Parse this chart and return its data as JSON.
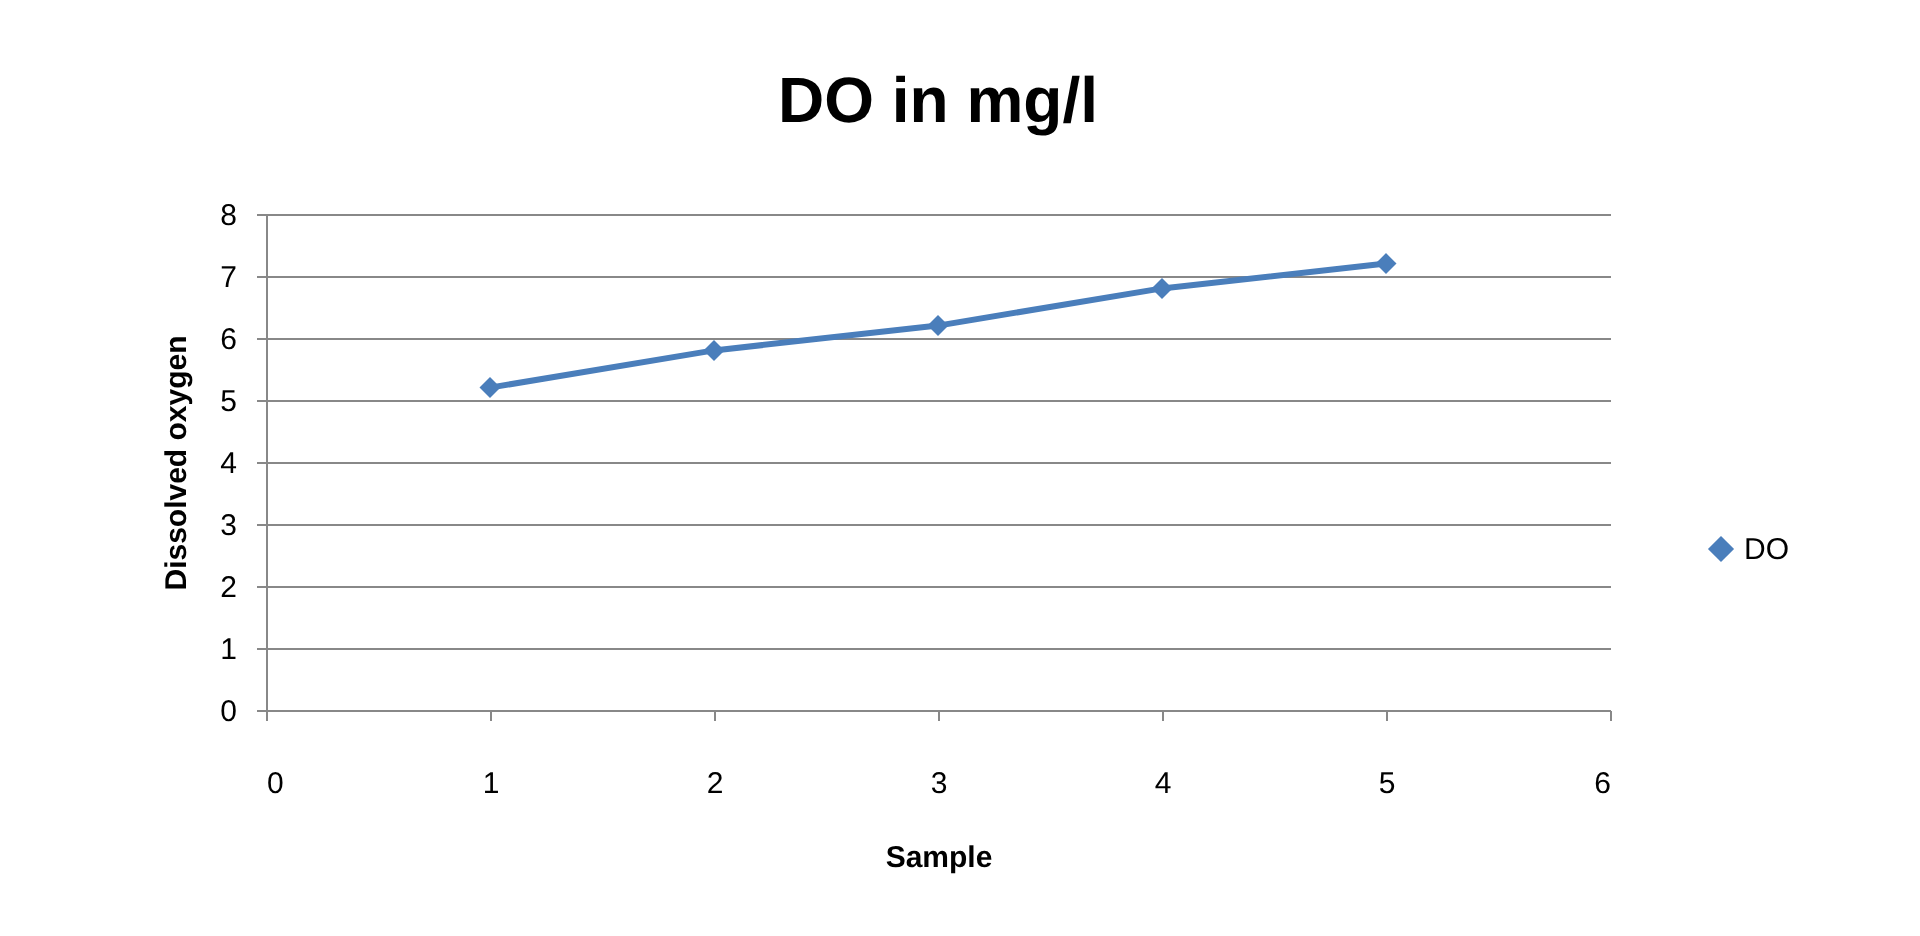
{
  "chart_data": {
    "type": "line",
    "title": "DO in mg/l",
    "xlabel": "Sample",
    "ylabel": "Dissolved oxygen",
    "x": [
      1,
      2,
      3,
      4,
      5
    ],
    "series": [
      {
        "name": "DO",
        "color": "#4a7ebb",
        "values": [
          5.2,
          5.8,
          6.2,
          6.8,
          7.2
        ]
      }
    ],
    "xlim": [
      0,
      6
    ],
    "xticks": [
      0,
      1,
      2,
      3,
      4,
      5,
      6
    ],
    "ylim": [
      0,
      8
    ],
    "yticks": [
      0,
      1,
      2,
      3,
      4,
      5,
      6,
      7,
      8
    ],
    "grid": "y",
    "legend": "right",
    "marker": "diamond",
    "line_style": "solid"
  }
}
